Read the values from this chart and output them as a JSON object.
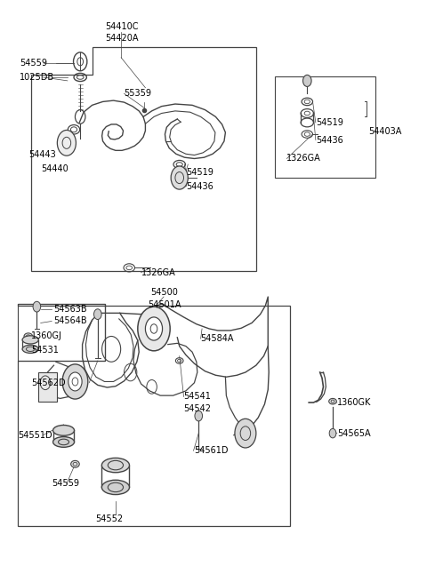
{
  "bg_color": "#ffffff",
  "lc": "#444444",
  "tc": "#000000",
  "fw": 4.8,
  "fh": 6.55,
  "dpi": 100,
  "labels": {
    "54410C": [
      0.285,
      0.955,
      "center",
      7
    ],
    "54420A": [
      0.285,
      0.935,
      "center",
      7
    ],
    "55359": [
      0.29,
      0.84,
      "left",
      7
    ],
    "54559_u": [
      0.045,
      0.892,
      "left",
      7
    ],
    "1025DB": [
      0.045,
      0.868,
      "left",
      7
    ],
    "54443": [
      0.065,
      0.735,
      "left",
      7
    ],
    "54440": [
      0.095,
      0.71,
      "left",
      7
    ],
    "54519_u": [
      0.435,
      0.705,
      "left",
      7
    ],
    "54436_u": [
      0.435,
      0.68,
      "left",
      7
    ],
    "1326GA_u": [
      0.33,
      0.532,
      "left",
      7
    ],
    "54519_r": [
      0.74,
      0.79,
      "left",
      7
    ],
    "54436_r": [
      0.74,
      0.76,
      "left",
      7
    ],
    "1326GA_r": [
      0.672,
      0.728,
      "left",
      7
    ],
    "54403A": [
      0.86,
      0.775,
      "left",
      7
    ],
    "54500": [
      0.385,
      0.497,
      "center",
      7
    ],
    "54501A": [
      0.385,
      0.477,
      "center",
      7
    ],
    "54563B": [
      0.125,
      0.468,
      "left",
      7
    ],
    "54564B": [
      0.125,
      0.448,
      "left",
      7
    ],
    "1360GJ": [
      0.072,
      0.422,
      "left",
      7
    ],
    "54531": [
      0.072,
      0.398,
      "left",
      7
    ],
    "54584A": [
      0.47,
      0.418,
      "left",
      7
    ],
    "54562D": [
      0.072,
      0.342,
      "left",
      7
    ],
    "54541": [
      0.43,
      0.318,
      "left",
      7
    ],
    "54542": [
      0.43,
      0.298,
      "left",
      7
    ],
    "54551D": [
      0.04,
      0.252,
      "left",
      7
    ],
    "54561D": [
      0.455,
      0.225,
      "left",
      7
    ],
    "54559_l": [
      0.12,
      0.168,
      "left",
      7
    ],
    "54552": [
      0.255,
      0.108,
      "center",
      7
    ],
    "1360GK": [
      0.79,
      0.308,
      "left",
      7
    ],
    "54565A": [
      0.79,
      0.255,
      "left",
      7
    ]
  }
}
